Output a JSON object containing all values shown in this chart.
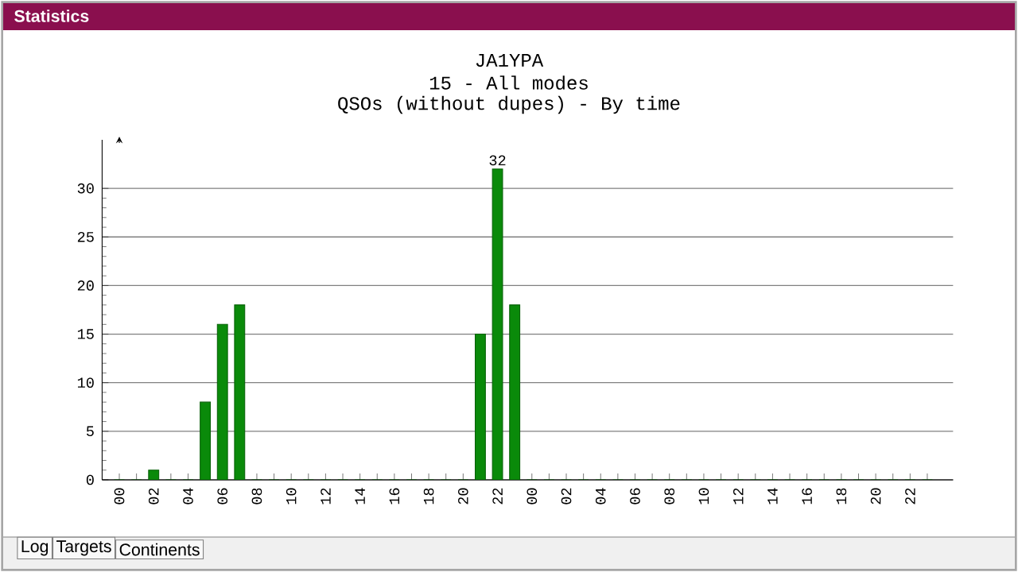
{
  "chart_data": {
    "type": "bar",
    "title": "JA1YPA",
    "subtitle": "15 - All modes",
    "annotations": [
      "QSOs (without dupes) - By time",
      "Statistics",
      "Log",
      "Targets",
      "Continents"
    ],
    "categories": [
      "00",
      null,
      "02",
      null,
      "04",
      null,
      "06",
      null,
      "08",
      null,
      "10",
      null,
      "12",
      null,
      "14",
      null,
      "16",
      null,
      "18",
      null,
      "20",
      null,
      "22",
      null,
      "00",
      null,
      "02",
      null,
      "04",
      null,
      "06",
      null,
      "08",
      null,
      "10",
      null,
      "12",
      null,
      "14",
      null,
      "16",
      null,
      "18",
      null,
      "20",
      null,
      "22",
      null
    ],
    "values": [
      0,
      0,
      1,
      0,
      0,
      8,
      16,
      18,
      0,
      0,
      0,
      0,
      0,
      0,
      0,
      0,
      0,
      0,
      0,
      0,
      0,
      15,
      32,
      18,
      0,
      0,
      0,
      0,
      0,
      0,
      0,
      0,
      0,
      0,
      0,
      0,
      0,
      0,
      0,
      0,
      0,
      0,
      0,
      0,
      0,
      0,
      0,
      0
    ],
    "value_labels": [
      null,
      null,
      null,
      null,
      null,
      null,
      null,
      null,
      null,
      null,
      null,
      null,
      null,
      null,
      null,
      null,
      null,
      null,
      null,
      null,
      null,
      null,
      "32",
      null,
      null,
      null,
      null,
      null,
      null,
      null,
      null,
      null,
      null,
      null,
      null,
      null,
      null,
      null,
      null,
      null,
      null,
      null,
      null,
      null,
      null,
      null,
      null,
      null
    ],
    "color": "#0a8a0a",
    "ylim": [
      0,
      35
    ],
    "yticks": [
      0,
      5,
      10,
      15,
      20,
      25,
      30
    ],
    "grid": "y"
  }
}
